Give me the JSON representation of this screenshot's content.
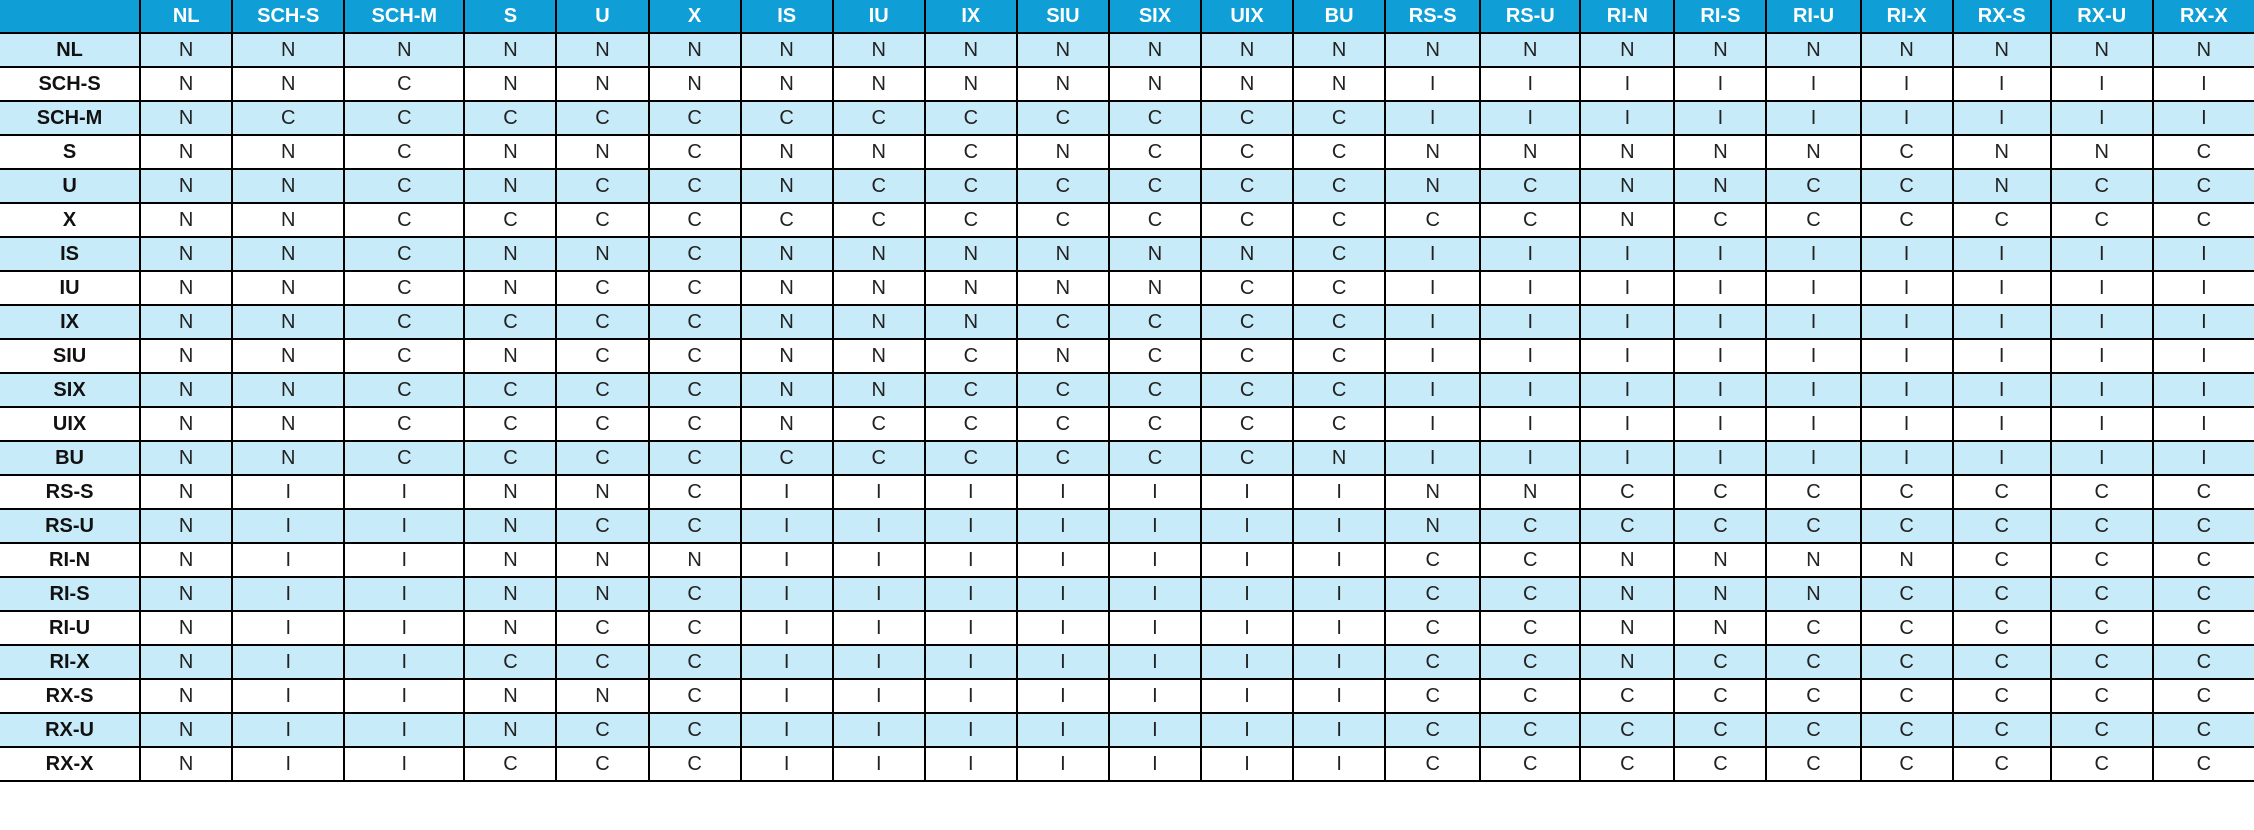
{
  "colors": {
    "header_bg": "#0f9fd6",
    "header_text": "#ffffff",
    "shaded_row": "#c8ebfa",
    "plain_row": "#ffffff",
    "grid": "#000000"
  },
  "corner_label": "",
  "columns": [
    "NL",
    "SCH-S",
    "SCH-M",
    "S",
    "U",
    "X",
    "IS",
    "IU",
    "IX",
    "SIU",
    "SIX",
    "UIX",
    "BU",
    "RS-S",
    "RS-U",
    "RI-N",
    "RI-S",
    "RI-U",
    "RI-X",
    "RX-S",
    "RX-U",
    "RX-X"
  ],
  "rows": [
    {
      "label": "NL",
      "cells": [
        "N",
        "N",
        "N",
        "N",
        "N",
        "N",
        "N",
        "N",
        "N",
        "N",
        "N",
        "N",
        "N",
        "N",
        "N",
        "N",
        "N",
        "N",
        "N",
        "N",
        "N",
        "N"
      ]
    },
    {
      "label": "SCH-S",
      "cells": [
        "N",
        "N",
        "C",
        "N",
        "N",
        "N",
        "N",
        "N",
        "N",
        "N",
        "N",
        "N",
        "N",
        "I",
        "I",
        "I",
        "I",
        "I",
        "I",
        "I",
        "I",
        "I"
      ]
    },
    {
      "label": "SCH-M",
      "cells": [
        "N",
        "C",
        "C",
        "C",
        "C",
        "C",
        "C",
        "C",
        "C",
        "C",
        "C",
        "C",
        "C",
        "I",
        "I",
        "I",
        "I",
        "I",
        "I",
        "I",
        "I",
        "I"
      ]
    },
    {
      "label": "S",
      "cells": [
        "N",
        "N",
        "C",
        "N",
        "N",
        "C",
        "N",
        "N",
        "C",
        "N",
        "C",
        "C",
        "C",
        "N",
        "N",
        "N",
        "N",
        "N",
        "C",
        "N",
        "N",
        "C"
      ]
    },
    {
      "label": "U",
      "cells": [
        "N",
        "N",
        "C",
        "N",
        "C",
        "C",
        "N",
        "C",
        "C",
        "C",
        "C",
        "C",
        "C",
        "N",
        "C",
        "N",
        "N",
        "C",
        "C",
        "N",
        "C",
        "C"
      ]
    },
    {
      "label": "X",
      "cells": [
        "N",
        "N",
        "C",
        "C",
        "C",
        "C",
        "C",
        "C",
        "C",
        "C",
        "C",
        "C",
        "C",
        "C",
        "C",
        "N",
        "C",
        "C",
        "C",
        "C",
        "C",
        "C"
      ]
    },
    {
      "label": "IS",
      "cells": [
        "N",
        "N",
        "C",
        "N",
        "N",
        "C",
        "N",
        "N",
        "N",
        "N",
        "N",
        "N",
        "C",
        "I",
        "I",
        "I",
        "I",
        "I",
        "I",
        "I",
        "I",
        "I"
      ]
    },
    {
      "label": "IU",
      "cells": [
        "N",
        "N",
        "C",
        "N",
        "C",
        "C",
        "N",
        "N",
        "N",
        "N",
        "N",
        "C",
        "C",
        "I",
        "I",
        "I",
        "I",
        "I",
        "I",
        "I",
        "I",
        "I"
      ]
    },
    {
      "label": "IX",
      "cells": [
        "N",
        "N",
        "C",
        "C",
        "C",
        "C",
        "N",
        "N",
        "N",
        "C",
        "C",
        "C",
        "C",
        "I",
        "I",
        "I",
        "I",
        "I",
        "I",
        "I",
        "I",
        "I"
      ]
    },
    {
      "label": "SIU",
      "cells": [
        "N",
        "N",
        "C",
        "N",
        "C",
        "C",
        "N",
        "N",
        "C",
        "N",
        "C",
        "C",
        "C",
        "I",
        "I",
        "I",
        "I",
        "I",
        "I",
        "I",
        "I",
        "I"
      ]
    },
    {
      "label": "SIX",
      "cells": [
        "N",
        "N",
        "C",
        "C",
        "C",
        "C",
        "N",
        "N",
        "C",
        "C",
        "C",
        "C",
        "C",
        "I",
        "I",
        "I",
        "I",
        "I",
        "I",
        "I",
        "I",
        "I"
      ]
    },
    {
      "label": "UIX",
      "cells": [
        "N",
        "N",
        "C",
        "C",
        "C",
        "C",
        "N",
        "C",
        "C",
        "C",
        "C",
        "C",
        "C",
        "I",
        "I",
        "I",
        "I",
        "I",
        "I",
        "I",
        "I",
        "I"
      ]
    },
    {
      "label": "BU",
      "cells": [
        "N",
        "N",
        "C",
        "C",
        "C",
        "C",
        "C",
        "C",
        "C",
        "C",
        "C",
        "C",
        "N",
        "I",
        "I",
        "I",
        "I",
        "I",
        "I",
        "I",
        "I",
        "I"
      ]
    },
    {
      "label": "RS-S",
      "cells": [
        "N",
        "I",
        "I",
        "N",
        "N",
        "C",
        "I",
        "I",
        "I",
        "I",
        "I",
        "I",
        "I",
        "N",
        "N",
        "C",
        "C",
        "C",
        "C",
        "C",
        "C",
        "C"
      ]
    },
    {
      "label": "RS-U",
      "cells": [
        "N",
        "I",
        "I",
        "N",
        "C",
        "C",
        "I",
        "I",
        "I",
        "I",
        "I",
        "I",
        "I",
        "N",
        "C",
        "C",
        "C",
        "C",
        "C",
        "C",
        "C",
        "C"
      ]
    },
    {
      "label": "RI-N",
      "cells": [
        "N",
        "I",
        "I",
        "N",
        "N",
        "N",
        "I",
        "I",
        "I",
        "I",
        "I",
        "I",
        "I",
        "C",
        "C",
        "N",
        "N",
        "N",
        "N",
        "C",
        "C",
        "C"
      ]
    },
    {
      "label": "RI-S",
      "cells": [
        "N",
        "I",
        "I",
        "N",
        "N",
        "C",
        "I",
        "I",
        "I",
        "I",
        "I",
        "I",
        "I",
        "C",
        "C",
        "N",
        "N",
        "N",
        "C",
        "C",
        "C",
        "C"
      ]
    },
    {
      "label": "RI-U",
      "cells": [
        "N",
        "I",
        "I",
        "N",
        "C",
        "C",
        "I",
        "I",
        "I",
        "I",
        "I",
        "I",
        "I",
        "C",
        "C",
        "N",
        "N",
        "C",
        "C",
        "C",
        "C",
        "C"
      ]
    },
    {
      "label": "RI-X",
      "cells": [
        "N",
        "I",
        "I",
        "C",
        "C",
        "C",
        "I",
        "I",
        "I",
        "I",
        "I",
        "I",
        "I",
        "C",
        "C",
        "N",
        "C",
        "C",
        "C",
        "C",
        "C",
        "C"
      ]
    },
    {
      "label": "RX-S",
      "cells": [
        "N",
        "I",
        "I",
        "N",
        "N",
        "C",
        "I",
        "I",
        "I",
        "I",
        "I",
        "I",
        "I",
        "C",
        "C",
        "C",
        "C",
        "C",
        "C",
        "C",
        "C",
        "C"
      ]
    },
    {
      "label": "RX-U",
      "cells": [
        "N",
        "I",
        "I",
        "N",
        "C",
        "C",
        "I",
        "I",
        "I",
        "I",
        "I",
        "I",
        "I",
        "C",
        "C",
        "C",
        "C",
        "C",
        "C",
        "C",
        "C",
        "C"
      ]
    },
    {
      "label": "RX-X",
      "cells": [
        "N",
        "I",
        "I",
        "C",
        "C",
        "C",
        "I",
        "I",
        "I",
        "I",
        "I",
        "I",
        "I",
        "C",
        "C",
        "C",
        "C",
        "C",
        "C",
        "C",
        "C",
        "C"
      ]
    }
  ]
}
